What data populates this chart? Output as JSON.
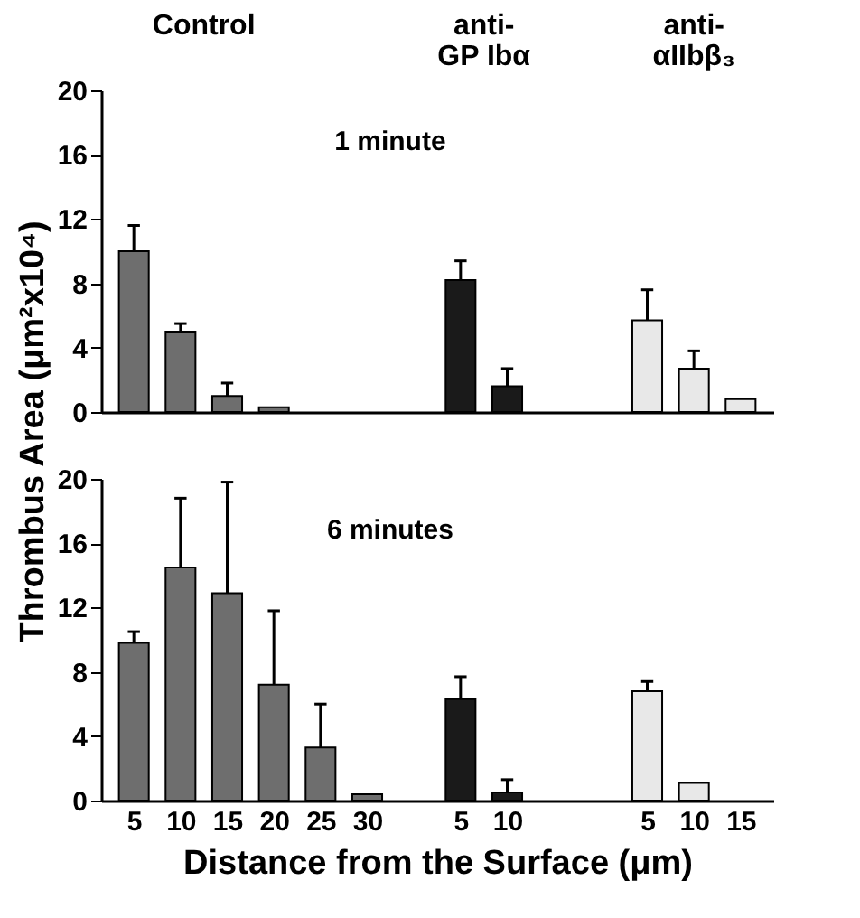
{
  "chart_data": [
    {
      "type": "bar",
      "ylabel": "Thrombus Area (μm²x10⁴)",
      "annotations": [
        "Control",
        "anti-\nGP Ibα",
        "anti-\nαIIbβ₃",
        "1 minute"
      ],
      "categories": [
        "5",
        "10",
        "15",
        "20",
        "25",
        "30",
        null,
        "5",
        "10",
        null,
        null,
        "5",
        "10",
        "15"
      ],
      "ylim": [
        0,
        20
      ],
      "yticks": [
        0,
        4,
        8,
        12,
        16,
        20
      ],
      "grid": false,
      "tick_labels": "y",
      "series": [
        {
          "color": "#6e6e6e",
          "values": [
            10,
            5,
            1,
            0.3,
            null,
            null,
            null,
            null,
            null,
            null,
            null,
            null,
            null,
            null
          ],
          "errors": [
            [
              10,
              11.6
            ],
            [
              5,
              5.5
            ],
            [
              1,
              1.8
            ],
            null,
            null,
            null,
            null,
            null,
            null,
            null,
            null,
            null,
            null,
            null
          ]
        },
        {
          "color": "#1a1a1a",
          "values": [
            null,
            null,
            null,
            null,
            null,
            null,
            null,
            8.2,
            1.6,
            null,
            null,
            null,
            null,
            null
          ],
          "errors": [
            null,
            null,
            null,
            null,
            null,
            null,
            null,
            [
              8.2,
              9.4
            ],
            [
              1.6,
              2.7
            ],
            null,
            null,
            null,
            null,
            null
          ]
        },
        {
          "color": "#e8e8e8",
          "values": [
            null,
            null,
            null,
            null,
            null,
            null,
            null,
            null,
            null,
            null,
            null,
            5.7,
            2.7,
            0.8
          ],
          "errors": [
            null,
            null,
            null,
            null,
            null,
            null,
            null,
            null,
            null,
            null,
            null,
            [
              5.7,
              7.6
            ],
            [
              2.7,
              3.8
            ],
            null
          ]
        }
      ]
    },
    {
      "type": "bar",
      "xlabel": "Distance from the Surface (μm)",
      "annotations": [
        "6 minutes"
      ],
      "categories": [
        "5",
        "10",
        "15",
        "20",
        "25",
        "30",
        null,
        "5",
        "10",
        null,
        null,
        "5",
        "10",
        "15"
      ],
      "ylim": [
        0,
        20
      ],
      "yticks": [
        0,
        4,
        8,
        12,
        16,
        20
      ],
      "grid": false,
      "series": [
        {
          "color": "#6e6e6e",
          "values": [
            9.8,
            14.5,
            12.9,
            7.2,
            3.3,
            0.4,
            null,
            null,
            null,
            null,
            null,
            null,
            null,
            null
          ],
          "errors": [
            [
              9.8,
              10.5
            ],
            [
              14.5,
              18.8
            ],
            [
              12.9,
              19.8
            ],
            [
              7.2,
              11.8
            ],
            [
              3.3,
              6
            ],
            null,
            null,
            null,
            null,
            null,
            null,
            null,
            null,
            null
          ]
        },
        {
          "color": "#1a1a1a",
          "values": [
            null,
            null,
            null,
            null,
            null,
            null,
            null,
            6.3,
            0.5,
            null,
            null,
            null,
            null,
            null
          ],
          "errors": [
            null,
            null,
            null,
            null,
            null,
            null,
            null,
            [
              6.3,
              7.7
            ],
            [
              0.5,
              1.3
            ],
            null,
            null,
            null,
            null,
            null
          ]
        },
        {
          "color": "#e8e8e8",
          "values": [
            null,
            null,
            null,
            null,
            null,
            null,
            null,
            null,
            null,
            null,
            null,
            6.8,
            1.1,
            null
          ],
          "errors": [
            null,
            null,
            null,
            null,
            null,
            null,
            null,
            null,
            null,
            null,
            null,
            [
              6.8,
              7.4
            ],
            null,
            null
          ]
        }
      ]
    }
  ]
}
